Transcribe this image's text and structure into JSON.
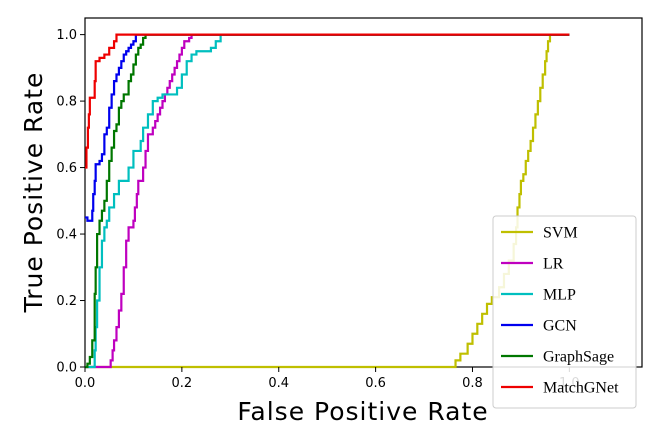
{
  "chart_data": {
    "type": "line",
    "title": "",
    "xlabel": "False Positive Rate",
    "ylabel": "True Positive Rate",
    "xlim": [
      0.0,
      1.15
    ],
    "ylim": [
      0.0,
      1.05
    ],
    "xticks": [
      "0.0",
      "0.2",
      "0.4",
      "0.6",
      "0.8",
      "1.0"
    ],
    "yticks": [
      "0.0",
      "0.2",
      "0.4",
      "0.6",
      "0.8",
      "1.0"
    ],
    "legend_position": "bottom-right",
    "grid": false,
    "series": [
      {
        "name": "SVM",
        "color": "#bfbf00",
        "points": [
          [
            0,
            0
          ],
          [
            0.765,
            0
          ],
          [
            0.765,
            0.02
          ],
          [
            0.775,
            0.02
          ],
          [
            0.775,
            0.04
          ],
          [
            0.79,
            0.04
          ],
          [
            0.79,
            0.07
          ],
          [
            0.8,
            0.07
          ],
          [
            0.8,
            0.1
          ],
          [
            0.81,
            0.1
          ],
          [
            0.81,
            0.13
          ],
          [
            0.82,
            0.13
          ],
          [
            0.82,
            0.16
          ],
          [
            0.83,
            0.16
          ],
          [
            0.83,
            0.19
          ],
          [
            0.84,
            0.19
          ],
          [
            0.84,
            0.21
          ],
          [
            0.855,
            0.21
          ],
          [
            0.855,
            0.24
          ],
          [
            0.865,
            0.24
          ],
          [
            0.865,
            0.28
          ],
          [
            0.875,
            0.28
          ],
          [
            0.875,
            0.32
          ],
          [
            0.885,
            0.32
          ],
          [
            0.885,
            0.37
          ],
          [
            0.89,
            0.37
          ],
          [
            0.89,
            0.42
          ],
          [
            0.893,
            0.42
          ],
          [
            0.893,
            0.48
          ],
          [
            0.897,
            0.48
          ],
          [
            0.897,
            0.52
          ],
          [
            0.9,
            0.52
          ],
          [
            0.9,
            0.56
          ],
          [
            0.905,
            0.56
          ],
          [
            0.905,
            0.58
          ],
          [
            0.91,
            0.58
          ],
          [
            0.91,
            0.62
          ],
          [
            0.915,
            0.62
          ],
          [
            0.915,
            0.65
          ],
          [
            0.92,
            0.65
          ],
          [
            0.92,
            0.68
          ],
          [
            0.925,
            0.68
          ],
          [
            0.925,
            0.72
          ],
          [
            0.93,
            0.72
          ],
          [
            0.93,
            0.76
          ],
          [
            0.935,
            0.76
          ],
          [
            0.935,
            0.8
          ],
          [
            0.94,
            0.8
          ],
          [
            0.94,
            0.84
          ],
          [
            0.945,
            0.84
          ],
          [
            0.945,
            0.88
          ],
          [
            0.95,
            0.88
          ],
          [
            0.95,
            0.92
          ],
          [
            0.953,
            0.92
          ],
          [
            0.953,
            0.95
          ],
          [
            0.956,
            0.95
          ],
          [
            0.956,
            0.98
          ],
          [
            0.96,
            0.98
          ],
          [
            0.96,
            1.0
          ],
          [
            1.0,
            1.0
          ]
        ]
      },
      {
        "name": "LR",
        "color": "#bf00bf",
        "points": [
          [
            0,
            0
          ],
          [
            0.053,
            0
          ],
          [
            0.053,
            0.02
          ],
          [
            0.057,
            0.02
          ],
          [
            0.057,
            0.05
          ],
          [
            0.06,
            0.05
          ],
          [
            0.06,
            0.08
          ],
          [
            0.065,
            0.08
          ],
          [
            0.065,
            0.12
          ],
          [
            0.07,
            0.12
          ],
          [
            0.07,
            0.17
          ],
          [
            0.075,
            0.17
          ],
          [
            0.075,
            0.22
          ],
          [
            0.08,
            0.22
          ],
          [
            0.08,
            0.3
          ],
          [
            0.085,
            0.3
          ],
          [
            0.085,
            0.38
          ],
          [
            0.09,
            0.38
          ],
          [
            0.09,
            0.42
          ],
          [
            0.1,
            0.42
          ],
          [
            0.1,
            0.44
          ],
          [
            0.103,
            0.44
          ],
          [
            0.103,
            0.48
          ],
          [
            0.107,
            0.48
          ],
          [
            0.107,
            0.52
          ],
          [
            0.11,
            0.52
          ],
          [
            0.11,
            0.56
          ],
          [
            0.12,
            0.56
          ],
          [
            0.12,
            0.6
          ],
          [
            0.125,
            0.6
          ],
          [
            0.125,
            0.65
          ],
          [
            0.13,
            0.65
          ],
          [
            0.13,
            0.7
          ],
          [
            0.14,
            0.7
          ],
          [
            0.14,
            0.72
          ],
          [
            0.145,
            0.72
          ],
          [
            0.145,
            0.74
          ],
          [
            0.15,
            0.74
          ],
          [
            0.15,
            0.76
          ],
          [
            0.155,
            0.76
          ],
          [
            0.155,
            0.78
          ],
          [
            0.16,
            0.78
          ],
          [
            0.16,
            0.8
          ],
          [
            0.165,
            0.8
          ],
          [
            0.165,
            0.82
          ],
          [
            0.17,
            0.82
          ],
          [
            0.17,
            0.84
          ],
          [
            0.175,
            0.84
          ],
          [
            0.175,
            0.86
          ],
          [
            0.18,
            0.86
          ],
          [
            0.18,
            0.88
          ],
          [
            0.185,
            0.88
          ],
          [
            0.185,
            0.9
          ],
          [
            0.19,
            0.9
          ],
          [
            0.19,
            0.92
          ],
          [
            0.195,
            0.92
          ],
          [
            0.195,
            0.94
          ],
          [
            0.2,
            0.94
          ],
          [
            0.2,
            0.96
          ],
          [
            0.205,
            0.96
          ],
          [
            0.205,
            0.98
          ],
          [
            0.215,
            0.98
          ],
          [
            0.215,
            0.99
          ],
          [
            0.22,
            0.99
          ],
          [
            0.22,
            1.0
          ],
          [
            1.0,
            1.0
          ]
        ]
      },
      {
        "name": "MLP",
        "color": "#00bfbf",
        "points": [
          [
            0,
            0
          ],
          [
            0.02,
            0
          ],
          [
            0.02,
            0.05
          ],
          [
            0.022,
            0.05
          ],
          [
            0.022,
            0.12
          ],
          [
            0.025,
            0.12
          ],
          [
            0.025,
            0.2
          ],
          [
            0.03,
            0.2
          ],
          [
            0.03,
            0.3
          ],
          [
            0.035,
            0.3
          ],
          [
            0.035,
            0.38
          ],
          [
            0.04,
            0.38
          ],
          [
            0.04,
            0.42
          ],
          [
            0.045,
            0.42
          ],
          [
            0.045,
            0.44
          ],
          [
            0.05,
            0.44
          ],
          [
            0.05,
            0.48
          ],
          [
            0.06,
            0.48
          ],
          [
            0.06,
            0.52
          ],
          [
            0.07,
            0.52
          ],
          [
            0.07,
            0.56
          ],
          [
            0.09,
            0.56
          ],
          [
            0.09,
            0.6
          ],
          [
            0.1,
            0.6
          ],
          [
            0.1,
            0.65
          ],
          [
            0.115,
            0.65
          ],
          [
            0.115,
            0.68
          ],
          [
            0.12,
            0.68
          ],
          [
            0.12,
            0.72
          ],
          [
            0.13,
            0.72
          ],
          [
            0.13,
            0.76
          ],
          [
            0.14,
            0.76
          ],
          [
            0.14,
            0.8
          ],
          [
            0.15,
            0.8
          ],
          [
            0.15,
            0.81
          ],
          [
            0.16,
            0.81
          ],
          [
            0.16,
            0.82
          ],
          [
            0.19,
            0.82
          ],
          [
            0.19,
            0.84
          ],
          [
            0.2,
            0.84
          ],
          [
            0.2,
            0.88
          ],
          [
            0.21,
            0.88
          ],
          [
            0.21,
            0.92
          ],
          [
            0.22,
            0.92
          ],
          [
            0.22,
            0.94
          ],
          [
            0.23,
            0.94
          ],
          [
            0.23,
            0.95
          ],
          [
            0.26,
            0.95
          ],
          [
            0.26,
            0.96
          ],
          [
            0.27,
            0.96
          ],
          [
            0.27,
            0.98
          ],
          [
            0.28,
            0.98
          ],
          [
            0.28,
            1.0
          ],
          [
            1.0,
            1.0
          ]
        ]
      },
      {
        "name": "GCN",
        "color": "#0000ee",
        "points": [
          [
            0,
            0.45
          ],
          [
            0.005,
            0.45
          ],
          [
            0.005,
            0.44
          ],
          [
            0.015,
            0.44
          ],
          [
            0.015,
            0.47
          ],
          [
            0.017,
            0.47
          ],
          [
            0.017,
            0.52
          ],
          [
            0.02,
            0.52
          ],
          [
            0.02,
            0.56
          ],
          [
            0.022,
            0.56
          ],
          [
            0.022,
            0.61
          ],
          [
            0.03,
            0.61
          ],
          [
            0.03,
            0.62
          ],
          [
            0.035,
            0.62
          ],
          [
            0.035,
            0.64
          ],
          [
            0.04,
            0.64
          ],
          [
            0.04,
            0.7
          ],
          [
            0.045,
            0.7
          ],
          [
            0.045,
            0.72
          ],
          [
            0.05,
            0.72
          ],
          [
            0.05,
            0.78
          ],
          [
            0.055,
            0.78
          ],
          [
            0.055,
            0.82
          ],
          [
            0.06,
            0.82
          ],
          [
            0.06,
            0.86
          ],
          [
            0.065,
            0.86
          ],
          [
            0.065,
            0.88
          ],
          [
            0.07,
            0.88
          ],
          [
            0.07,
            0.9
          ],
          [
            0.075,
            0.9
          ],
          [
            0.075,
            0.92
          ],
          [
            0.08,
            0.92
          ],
          [
            0.08,
            0.94
          ],
          [
            0.085,
            0.94
          ],
          [
            0.085,
            0.95
          ],
          [
            0.09,
            0.95
          ],
          [
            0.09,
            0.96
          ],
          [
            0.095,
            0.96
          ],
          [
            0.095,
            0.97
          ],
          [
            0.1,
            0.97
          ],
          [
            0.1,
            0.98
          ],
          [
            0.105,
            0.98
          ],
          [
            0.105,
            1.0
          ],
          [
            1.0,
            1.0
          ]
        ]
      },
      {
        "name": "GraphSage",
        "color": "#007700",
        "points": [
          [
            0,
            0
          ],
          [
            0.005,
            0
          ],
          [
            0.005,
            0.01
          ],
          [
            0.01,
            0.01
          ],
          [
            0.01,
            0.03
          ],
          [
            0.015,
            0.03
          ],
          [
            0.015,
            0.08
          ],
          [
            0.02,
            0.08
          ],
          [
            0.02,
            0.22
          ],
          [
            0.022,
            0.22
          ],
          [
            0.022,
            0.3
          ],
          [
            0.025,
            0.3
          ],
          [
            0.025,
            0.4
          ],
          [
            0.03,
            0.4
          ],
          [
            0.03,
            0.44
          ],
          [
            0.035,
            0.44
          ],
          [
            0.035,
            0.47
          ],
          [
            0.04,
            0.47
          ],
          [
            0.04,
            0.5
          ],
          [
            0.045,
            0.5
          ],
          [
            0.045,
            0.56
          ],
          [
            0.05,
            0.56
          ],
          [
            0.05,
            0.62
          ],
          [
            0.055,
            0.62
          ],
          [
            0.055,
            0.66
          ],
          [
            0.06,
            0.66
          ],
          [
            0.06,
            0.71
          ],
          [
            0.065,
            0.71
          ],
          [
            0.065,
            0.73
          ],
          [
            0.07,
            0.73
          ],
          [
            0.07,
            0.78
          ],
          [
            0.075,
            0.78
          ],
          [
            0.075,
            0.8
          ],
          [
            0.08,
            0.8
          ],
          [
            0.08,
            0.82
          ],
          [
            0.09,
            0.82
          ],
          [
            0.09,
            0.86
          ],
          [
            0.095,
            0.86
          ],
          [
            0.095,
            0.88
          ],
          [
            0.1,
            0.88
          ],
          [
            0.1,
            0.91
          ],
          [
            0.105,
            0.91
          ],
          [
            0.105,
            0.94
          ],
          [
            0.11,
            0.94
          ],
          [
            0.11,
            0.96
          ],
          [
            0.115,
            0.96
          ],
          [
            0.115,
            0.97
          ],
          [
            0.12,
            0.97
          ],
          [
            0.12,
            0.99
          ],
          [
            0.125,
            0.99
          ],
          [
            0.125,
            1.0
          ],
          [
            1.0,
            1.0
          ]
        ]
      },
      {
        "name": "MatchGNet",
        "color": "#ee0000",
        "points": [
          [
            0,
            0.6
          ],
          [
            0.003,
            0.6
          ],
          [
            0.003,
            0.66
          ],
          [
            0.006,
            0.66
          ],
          [
            0.006,
            0.72
          ],
          [
            0.008,
            0.72
          ],
          [
            0.008,
            0.76
          ],
          [
            0.01,
            0.76
          ],
          [
            0.01,
            0.81
          ],
          [
            0.02,
            0.81
          ],
          [
            0.02,
            0.86
          ],
          [
            0.022,
            0.86
          ],
          [
            0.022,
            0.92
          ],
          [
            0.03,
            0.92
          ],
          [
            0.03,
            0.93
          ],
          [
            0.04,
            0.93
          ],
          [
            0.04,
            0.94
          ],
          [
            0.05,
            0.94
          ],
          [
            0.05,
            0.96
          ],
          [
            0.06,
            0.96
          ],
          [
            0.06,
            0.98
          ],
          [
            0.065,
            0.98
          ],
          [
            0.065,
            1.0
          ],
          [
            1.0,
            1.0
          ]
        ]
      }
    ]
  }
}
